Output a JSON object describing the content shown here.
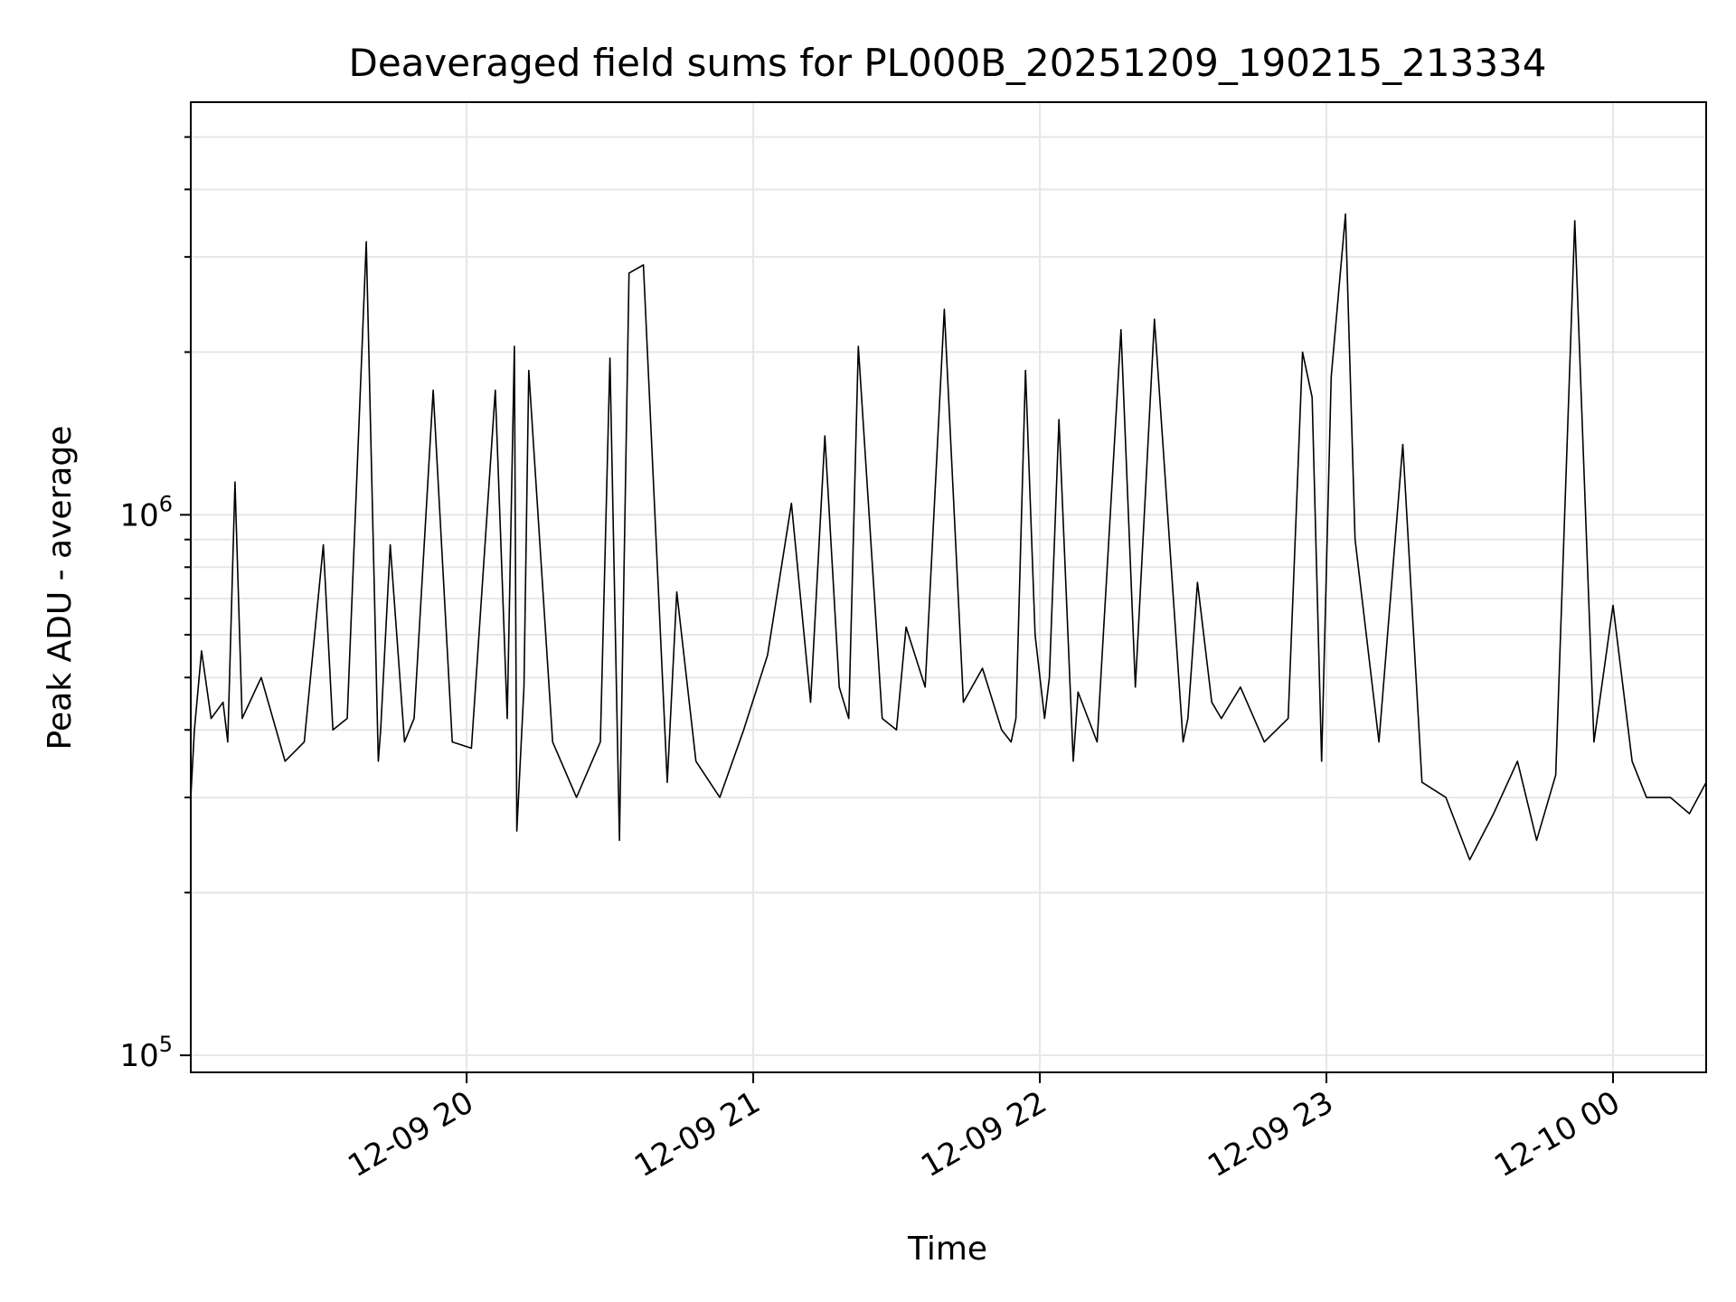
{
  "chart_data": {
    "type": "line",
    "title": "Deaveraged field sums for PL000B_20251209_190215_213334",
    "xlabel": "Time",
    "ylabel": "Peak ADU - average",
    "yscale": "log",
    "ylim": [
      93000,
      5800000
    ],
    "xlim": [
      "2025-12-09 19:02:15",
      "2025-12-10 00:19:30"
    ],
    "grid": true,
    "line_color": "#000000",
    "x_ticks": [
      {
        "value": "2025-12-09 20:00",
        "label": "12-09 20"
      },
      {
        "value": "2025-12-09 21:00",
        "label": "12-09 21"
      },
      {
        "value": "2025-12-09 22:00",
        "label": "12-09 22"
      },
      {
        "value": "2025-12-09 23:00",
        "label": "12-09 23"
      },
      {
        "value": "2025-12-10 00:00",
        "label": "12-10 00"
      }
    ],
    "y_ticks": [
      {
        "value": 100000,
        "base": "10",
        "exp": "5"
      },
      {
        "value": 1000000,
        "base": "10",
        "exp": "6"
      }
    ],
    "series": [
      {
        "x": [
          "2025-12-09 19:02:15",
          "2025-12-09 19:03:00",
          "2025-12-09 19:04:30",
          "2025-12-09 19:06:30",
          "2025-12-09 19:09:00",
          "2025-12-09 19:10:00",
          "2025-12-09 19:11:30",
          "2025-12-09 19:13:00",
          "2025-12-09 19:17:00",
          "2025-12-09 19:22:00",
          "2025-12-09 19:26:00",
          "2025-12-09 19:30:00",
          "2025-12-09 19:32:00",
          "2025-12-09 19:35:00",
          "2025-12-09 19:39:00",
          "2025-12-09 19:41:30",
          "2025-12-09 19:42:00",
          "2025-12-09 19:44:00",
          "2025-12-09 19:47:00",
          "2025-12-09 19:49:00",
          "2025-12-09 19:53:00",
          "2025-12-09 19:57:00",
          "2025-12-09 20:01:00",
          "2025-12-09 20:06:00",
          "2025-12-09 20:08:30",
          "2025-12-09 20:10:00",
          "2025-12-09 20:10:30",
          "2025-12-09 20:12:00",
          "2025-12-09 20:13:00",
          "2025-12-09 20:18:00",
          "2025-12-09 20:23:00",
          "2025-12-09 20:28:00",
          "2025-12-09 20:30:00",
          "2025-12-09 20:32:00",
          "2025-12-09 20:34:00",
          "2025-12-09 20:37:00",
          "2025-12-09 20:42:00",
          "2025-12-09 20:44:00",
          "2025-12-09 20:48:00",
          "2025-12-09 20:53:00",
          "2025-12-09 20:58:00",
          "2025-12-09 21:03:00",
          "2025-12-09 21:08:00",
          "2025-12-09 21:12:00",
          "2025-12-09 21:15:00",
          "2025-12-09 21:18:00",
          "2025-12-09 21:20:00",
          "2025-12-09 21:22:00",
          "2025-12-09 21:27:00",
          "2025-12-09 21:30:00",
          "2025-12-09 21:32:00",
          "2025-12-09 21:36:00",
          "2025-12-09 21:40:00",
          "2025-12-09 21:44:00",
          "2025-12-09 21:48:00",
          "2025-12-09 21:52:00",
          "2025-12-09 21:54:00",
          "2025-12-09 21:55:00",
          "2025-12-09 21:57:00",
          "2025-12-09 21:59:00",
          "2025-12-09 22:01:00",
          "2025-12-09 22:02:00",
          "2025-12-09 22:04:00",
          "2025-12-09 22:07:00",
          "2025-12-09 22:08:00",
          "2025-12-09 22:12:00",
          "2025-12-09 22:17:00",
          "2025-12-09 22:20:00",
          "2025-12-09 22:24:00",
          "2025-12-09 22:30:00",
          "2025-12-09 22:31:00",
          "2025-12-09 22:33:00",
          "2025-12-09 22:36:00",
          "2025-12-09 22:38:00",
          "2025-12-09 22:42:00",
          "2025-12-09 22:47:00",
          "2025-12-09 22:52:00",
          "2025-12-09 22:55:00",
          "2025-12-09 22:57:00",
          "2025-12-09 22:59:00",
          "2025-12-09 23:01:00",
          "2025-12-09 23:04:00",
          "2025-12-09 23:06:00",
          "2025-12-09 23:11:00",
          "2025-12-09 23:16:00",
          "2025-12-09 23:20:00",
          "2025-12-09 23:25:00",
          "2025-12-09 23:30:00",
          "2025-12-09 23:35:00",
          "2025-12-09 23:40:00",
          "2025-12-09 23:44:00",
          "2025-12-09 23:48:00",
          "2025-12-09 23:52:00",
          "2025-12-09 23:56:00",
          "2025-12-10 00:00:00",
          "2025-12-10 00:04:00",
          "2025-12-10 00:07:00",
          "2025-12-10 00:12:00",
          "2025-12-10 00:16:00",
          "2025-12-10 00:19:30"
        ],
        "y": [
          300000,
          400000,
          560000,
          420000,
          450000,
          380000,
          1150000,
          420000,
          500000,
          350000,
          380000,
          880000,
          400000,
          420000,
          3200000,
          350000,
          400000,
          880000,
          380000,
          420000,
          1700000,
          380000,
          370000,
          1700000,
          420000,
          2050000,
          260000,
          480000,
          1850000,
          380000,
          300000,
          380000,
          1950000,
          250000,
          2800000,
          2900000,
          320000,
          720000,
          350000,
          300000,
          400000,
          550000,
          1050000,
          450000,
          1400000,
          480000,
          420000,
          2050000,
          420000,
          400000,
          620000,
          480000,
          2400000,
          450000,
          520000,
          400000,
          380000,
          420000,
          1850000,
          600000,
          420000,
          500000,
          1500000,
          350000,
          470000,
          380000,
          2200000,
          480000,
          2300000,
          380000,
          420000,
          750000,
          450000,
          420000,
          480000,
          380000,
          420000,
          2000000,
          1650000,
          350000,
          1800000,
          3600000,
          900000,
          380000,
          1350000,
          320000,
          300000,
          230000,
          280000,
          350000,
          250000,
          330000,
          3500000,
          380000,
          680000,
          350000,
          300000,
          300000,
          280000,
          320000
        ]
      }
    ]
  }
}
